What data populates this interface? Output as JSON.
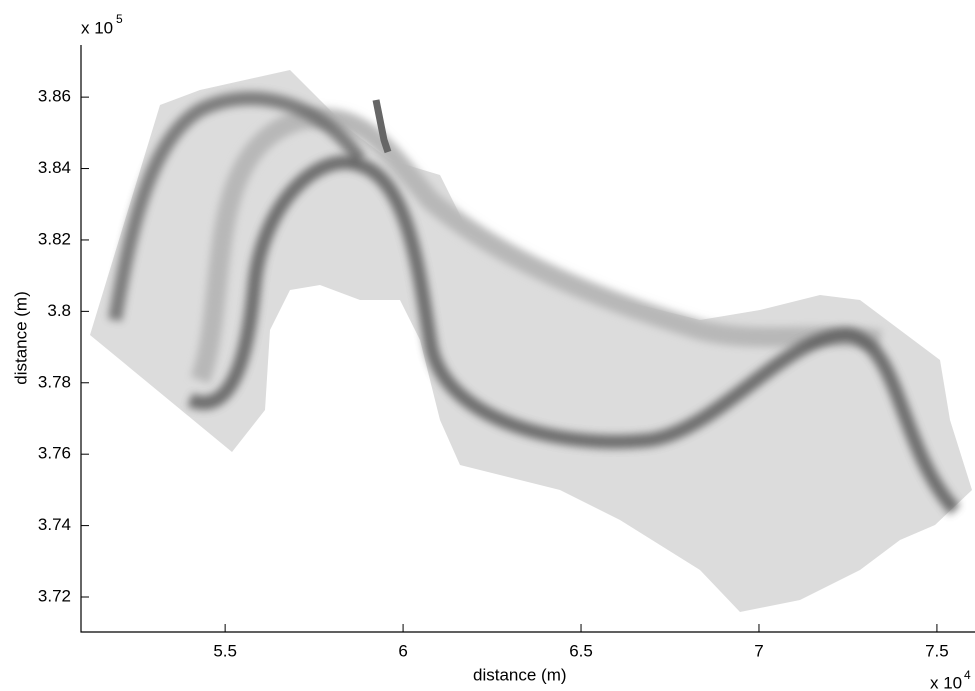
{
  "chart_data": {
    "type": "image",
    "x_label": "distance (m)",
    "y_label": "distance (m)",
    "x_multiplier": "x 10",
    "x_exponent": "4",
    "y_multiplier": "x 10",
    "y_exponent": "5",
    "xlim": [
      5.095,
      7.607
    ],
    "xticks": [
      5.5,
      6,
      6.5,
      7,
      7.5
    ],
    "ylim": [
      3.7102,
      3.8746
    ],
    "yticks": [
      3.72,
      3.74,
      3.76,
      3.78,
      3.8,
      3.82,
      3.84,
      3.86
    ],
    "colormap": "gray",
    "grid": false
  }
}
